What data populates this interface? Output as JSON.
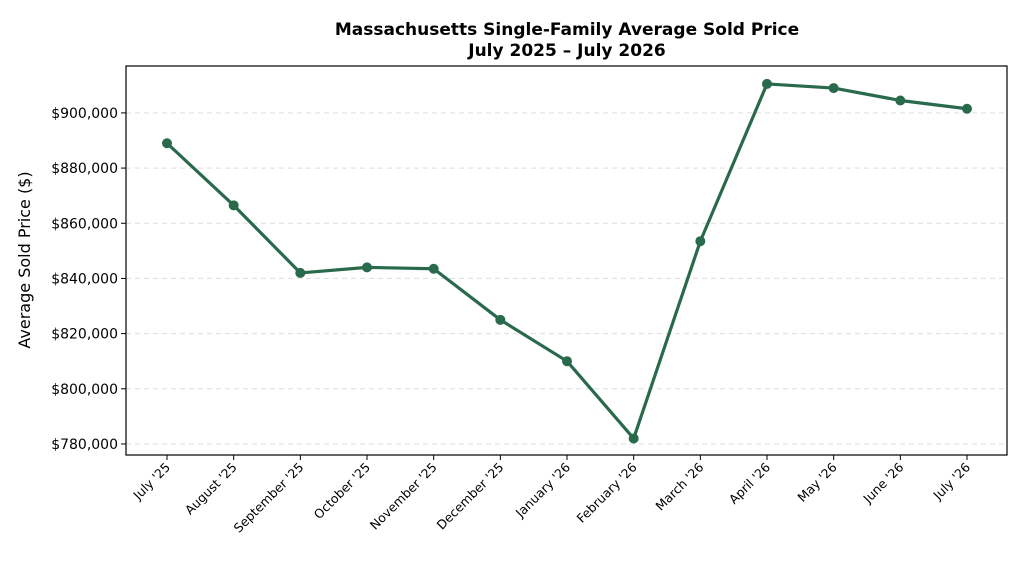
{
  "chart_data": {
    "type": "line",
    "title": "Massachusetts Single-Family Average Sold Price",
    "subtitle": "July 2025 – July 2026",
    "xlabel": "",
    "ylabel": "Average Sold Price ($)",
    "categories": [
      "July '25",
      "August '25",
      "September '25",
      "October '25",
      "November '25",
      "December '25",
      "January '26",
      "February '26",
      "March '26",
      "April '26",
      "May '26",
      "June '26",
      "July '26"
    ],
    "series": [
      {
        "values": [
          889000,
          866500,
          842000,
          844000,
          843500,
          825000,
          810000,
          782000,
          853500,
          910500,
          909000,
          904500,
          901500
        ]
      }
    ],
    "y_ticks": [
      780000,
      800000,
      820000,
      840000,
      860000,
      880000,
      900000
    ],
    "y_tick_labels": [
      "$780,000",
      "$800,000",
      "$820,000",
      "$840,000",
      "$860,000",
      "$880,000",
      "$900,000"
    ],
    "ylim": [
      776000,
      917000
    ],
    "grid": "horizontal dashed",
    "colors": {
      "line": "#2a6a4c",
      "marker": "#2a6a4c"
    }
  }
}
